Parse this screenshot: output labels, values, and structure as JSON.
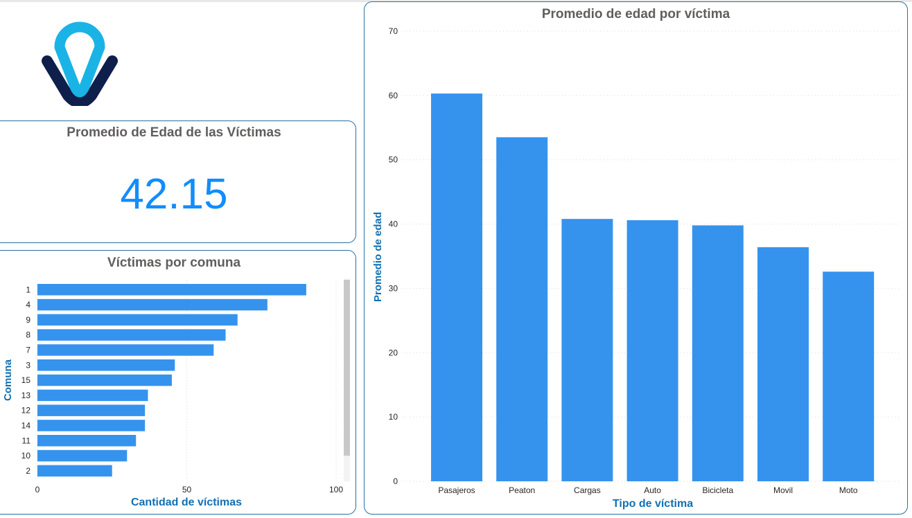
{
  "kpi": {
    "title": "Promedio de Edad de las Víctimas",
    "value": "42.15"
  },
  "colors": {
    "bar": "#3593ee",
    "accent": "#1170b3",
    "logo_light": "#1ab3e6",
    "logo_dark": "#0f1f4b"
  },
  "logo": {
    "icon": "brand-logo-icon"
  },
  "chart_data": [
    {
      "type": "bar",
      "orientation": "horizontal",
      "title": "Víctimas por comuna",
      "xlabel": "Cantidad de víctimas",
      "ylabel": "Comuna",
      "categories": [
        "1",
        "4",
        "9",
        "8",
        "7",
        "3",
        "15",
        "13",
        "12",
        "14",
        "11",
        "10",
        "2"
      ],
      "values": [
        90,
        77,
        67,
        63,
        59,
        46,
        45,
        37,
        36,
        36,
        33,
        30,
        25
      ],
      "xlim": [
        0,
        100
      ],
      "xticks": [
        "0",
        "50",
        "100"
      ],
      "grid": true
    },
    {
      "type": "bar",
      "orientation": "vertical",
      "title": "Promedio de edad por víctima",
      "xlabel": "Tipo de víctima",
      "ylabel": "Promedio de edad",
      "categories": [
        "Pasajeros",
        "Peaton",
        "Cargas",
        "Auto",
        "Bicicleta",
        "Movil",
        "Moto"
      ],
      "values": [
        60.3,
        53.5,
        40.8,
        40.6,
        39.8,
        36.4,
        32.6
      ],
      "ylim": [
        0,
        70
      ],
      "yticks": [
        "0",
        "10",
        "20",
        "30",
        "40",
        "50",
        "60",
        "70"
      ],
      "grid": true
    }
  ]
}
